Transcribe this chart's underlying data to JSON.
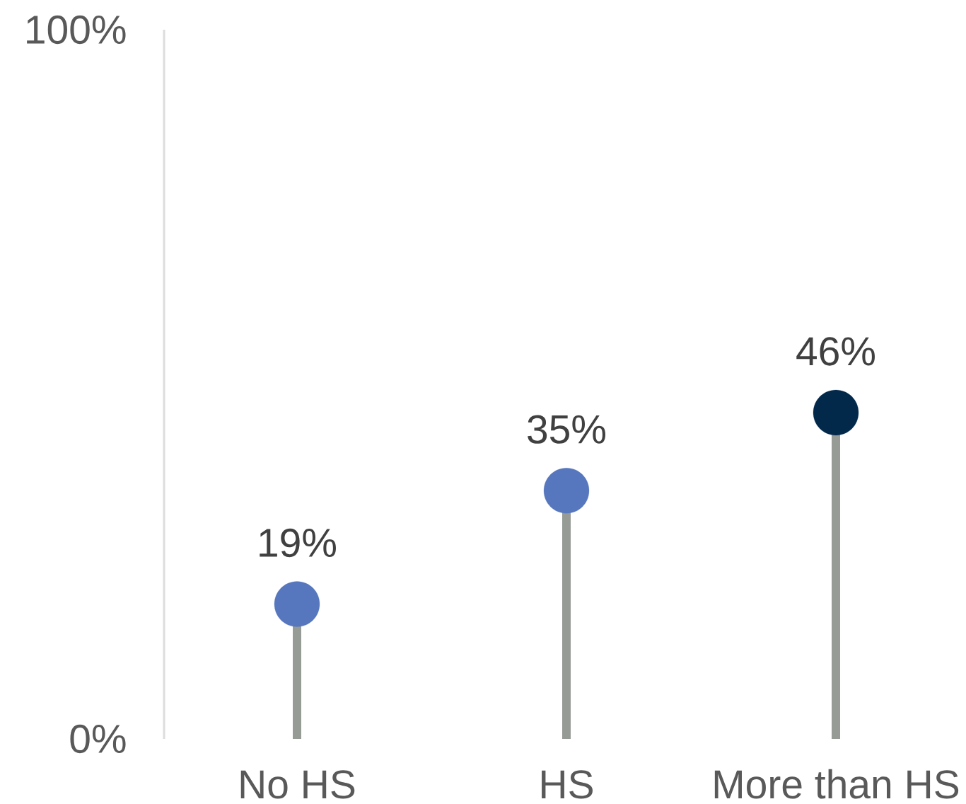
{
  "chart_data": {
    "type": "lollipop",
    "categories": [
      "No HS",
      "HS",
      "More than HS"
    ],
    "values": [
      19,
      35,
      46
    ],
    "colors": [
      "#5677bd",
      "#5677bd",
      "#02284a"
    ],
    "value_labels": [
      "19%",
      "35%",
      "46%"
    ],
    "ylim": [
      0,
      100
    ],
    "yticks": [
      {
        "value": 0,
        "label": "0%"
      },
      {
        "value": 100,
        "label": "100%"
      }
    ],
    "marker": "circle",
    "grid": false
  }
}
